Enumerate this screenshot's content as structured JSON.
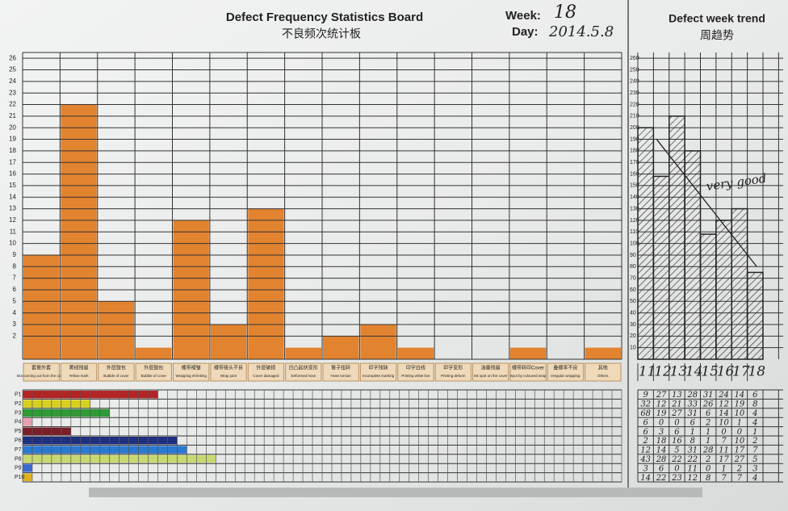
{
  "header": {
    "title": "Defect Frequency Statistics Board",
    "subtitle": "不良频次统计板",
    "week_label": "Week:",
    "week": "18",
    "day_label": "Day:",
    "day": "2014.5.8"
  },
  "chart_data": [
    {
      "type": "bar",
      "color": "#e2832f",
      "grid": true,
      "categories": [
        "Bra coming out from the cover",
        "Yellow mark",
        "Bubble of cover",
        "Bubble of cover",
        "Wrapping shrinking",
        "Wrap joint",
        "Cover damaged",
        "Deformed hose",
        "Hose torsion",
        "Incomplete marking",
        "Printing white line",
        "Printing deform",
        "Ink spot on the cover",
        "Spot by coloured wrap",
        "Irregular wrapping",
        "Others"
      ],
      "categories_cn": [
        "套管外套",
        "黄线残留",
        "外层鼓包",
        "外层鼓包",
        "缠带褶皱",
        "缠带接头不良",
        "外层破损",
        "凹凸起伏变形",
        "管子扭转",
        "印字残缺",
        "印字白线",
        "印字变形",
        "油墨残留",
        "缠带转印Cover",
        "叠缠率不良",
        "其他"
      ],
      "values": [
        9,
        22,
        5,
        1,
        12,
        3,
        13,
        1,
        2,
        3,
        1,
        0,
        0,
        1,
        0,
        1
      ],
      "ylim": [
        0,
        26.5
      ],
      "yticks": [
        2,
        3,
        4,
        5,
        6,
        7,
        8,
        9,
        10,
        11,
        12,
        13,
        14,
        15,
        16,
        17,
        18,
        19,
        20,
        21,
        22,
        23,
        24,
        25,
        26
      ]
    },
    {
      "type": "hatched-bar",
      "title": "Defect week trend",
      "subtitle": "周趋势",
      "annotation": "very good",
      "color": "#222222",
      "grid": true,
      "categories": [
        "11",
        "12",
        "13",
        "14",
        "15",
        "16",
        "17",
        "18"
      ],
      "values": [
        200,
        158,
        210,
        180,
        108,
        120,
        130,
        75
      ],
      "ylim": [
        0,
        265
      ],
      "yticks": [
        10,
        20,
        30,
        40,
        50,
        60,
        70,
        80,
        90,
        100,
        110,
        120,
        130,
        140,
        150,
        160,
        170,
        180,
        190,
        200,
        210,
        220,
        230,
        240,
        250,
        260
      ]
    },
    {
      "type": "hbar",
      "grid": true,
      "categories": [
        "P1",
        "P2",
        "P3",
        "P4",
        "P5",
        "P6",
        "P7",
        "P8",
        "P9",
        "P10"
      ],
      "series": [
        {
          "values": [
            14,
            7,
            9,
            1,
            5,
            16,
            17,
            20,
            1,
            1
          ],
          "colors": [
            "#b42424",
            "#d8d020",
            "#2f9a36",
            "#e8a0b0",
            "#7a1f2a",
            "#1f2f80",
            "#2a78d0",
            "#c8d870",
            "#3a6ad0",
            "#e0b020"
          ]
        }
      ],
      "xlim": [
        0,
        62
      ]
    }
  ],
  "week_table": {
    "rows": [
      [
        "9",
        "27",
        "13",
        "28",
        "31",
        "24",
        "14",
        "6"
      ],
      [
        "32",
        "12",
        "21",
        "33",
        "26",
        "12",
        "19",
        "8"
      ],
      [
        "68",
        "19",
        "27",
        "31",
        "6",
        "14",
        "10",
        "4"
      ],
      [
        "6",
        "0",
        "0",
        "6",
        "2",
        "10",
        "1",
        "4"
      ],
      [
        "6",
        "3",
        "6",
        "1",
        "1",
        "0",
        "0",
        "1"
      ],
      [
        "2",
        "18",
        "16",
        "8",
        "1",
        "7",
        "10",
        "2"
      ],
      [
        "12",
        "14",
        "5",
        "31",
        "28",
        "11",
        "17",
        "7"
      ],
      [
        "43",
        "28",
        "22",
        "22",
        "2",
        "17",
        "27",
        "5"
      ],
      [
        "3",
        "6",
        "0",
        "11",
        "0",
        "1",
        "2",
        "3"
      ],
      [
        "14",
        "22",
        "23",
        "12",
        "8",
        "7",
        "7",
        "4"
      ]
    ]
  }
}
